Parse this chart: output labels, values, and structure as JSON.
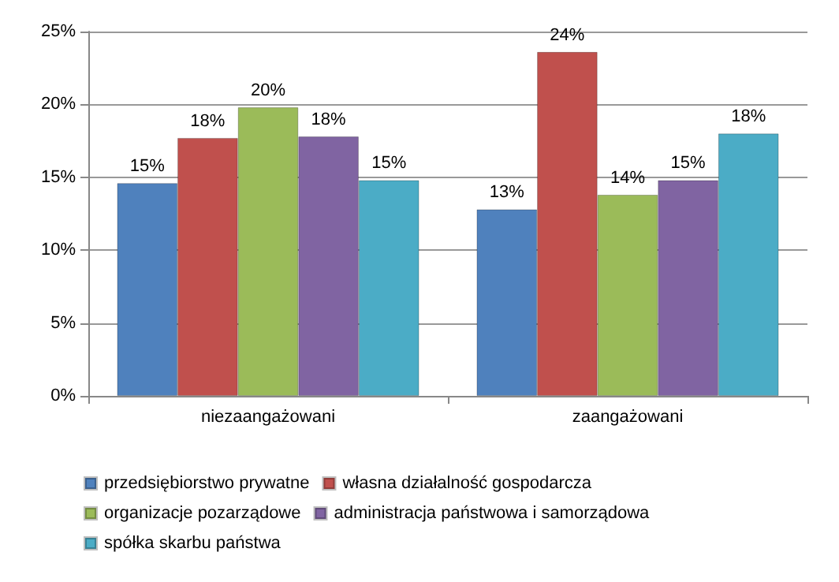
{
  "chart_data": {
    "type": "bar",
    "categories": [
      "niezaangażowani",
      "zaangażowani"
    ],
    "series": [
      {
        "name": "przedsiębiorstwo prywatne",
        "color": "#4f81bd",
        "values": [
          14.6,
          12.8
        ],
        "value_labels": [
          "15%",
          "13%"
        ]
      },
      {
        "name": "własna działalność gospodarcza",
        "color": "#c0504d",
        "values": [
          17.7,
          23.6
        ],
        "value_labels": [
          "18%",
          "24%"
        ]
      },
      {
        "name": "organizacje pozarządowe",
        "color": "#9bbb59",
        "values": [
          19.8,
          13.8
        ],
        "value_labels": [
          "20%",
          "14%"
        ]
      },
      {
        "name": "administracja państwowa i samorządowa",
        "color": "#8064a2",
        "values": [
          17.8,
          14.8
        ],
        "value_labels": [
          "18%",
          "15%"
        ]
      },
      {
        "name": "spółka skarbu państwa",
        "color": "#4bacc6",
        "values": [
          14.8,
          18.0
        ],
        "value_labels": [
          "15%",
          "18%"
        ]
      }
    ],
    "ylim": [
      0,
      25
    ],
    "yticks": [
      {
        "value": 0,
        "label": "0%"
      },
      {
        "value": 5,
        "label": "5%"
      },
      {
        "value": 10,
        "label": "10%"
      },
      {
        "value": 15,
        "label": "15%"
      },
      {
        "value": 20,
        "label": "20%"
      },
      {
        "value": 25,
        "label": "25%"
      }
    ],
    "grid": "y",
    "legend": "bottom"
  }
}
